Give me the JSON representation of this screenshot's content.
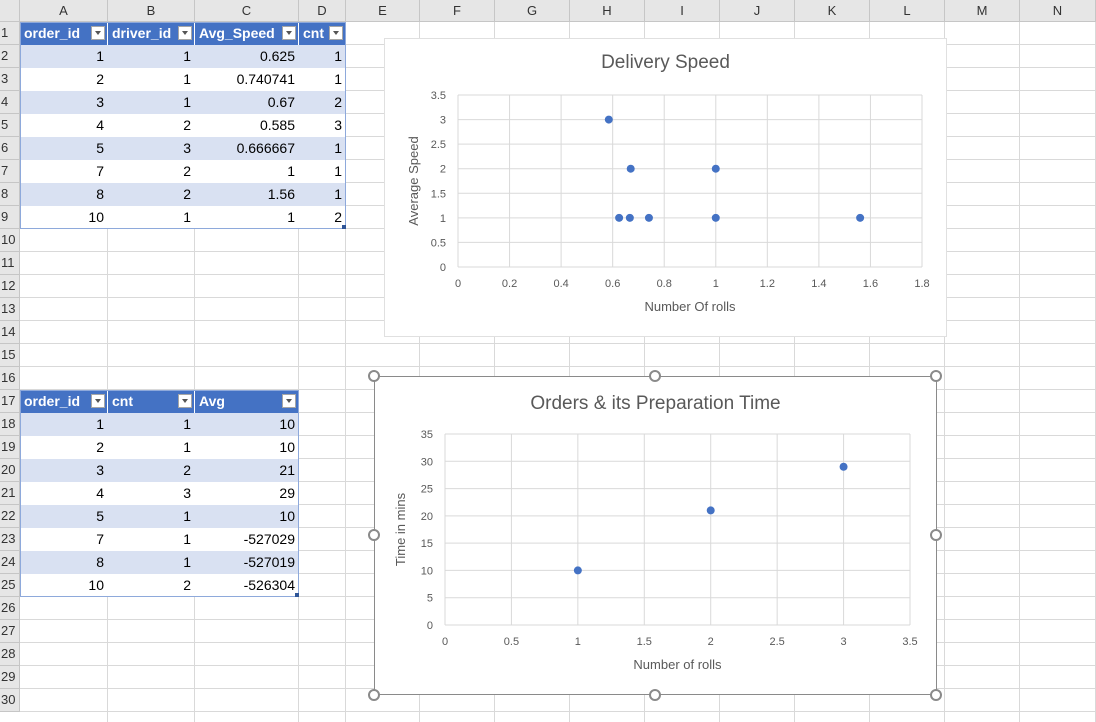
{
  "columns": [
    "A",
    "B",
    "C",
    "D",
    "E",
    "F",
    "G",
    "H",
    "I",
    "J",
    "K",
    "L",
    "M",
    "N"
  ],
  "rows": [
    "1",
    "2",
    "3",
    "4",
    "5",
    "6",
    "7",
    "8",
    "9",
    "10",
    "11",
    "12",
    "13",
    "14",
    "15",
    "16",
    "17",
    "18",
    "19",
    "20",
    "21",
    "22",
    "23",
    "24",
    "25",
    "26",
    "27",
    "28",
    "29",
    "30"
  ],
  "table1": {
    "headers": [
      "order_id",
      "driver_id",
      "Avg_Speed",
      "cnt"
    ],
    "rows": [
      [
        "1",
        "1",
        "0.625",
        "1"
      ],
      [
        "2",
        "1",
        "0.740741",
        "1"
      ],
      [
        "3",
        "1",
        "0.67",
        "2"
      ],
      [
        "4",
        "2",
        "0.585",
        "3"
      ],
      [
        "5",
        "3",
        "0.666667",
        "1"
      ],
      [
        "7",
        "2",
        "1",
        "1"
      ],
      [
        "8",
        "2",
        "1.56",
        "1"
      ],
      [
        "10",
        "1",
        "1",
        "2"
      ]
    ]
  },
  "table2": {
    "headers": [
      "order_id",
      "cnt",
      "Avg"
    ],
    "rows": [
      [
        "1",
        "1",
        "10"
      ],
      [
        "2",
        "1",
        "10"
      ],
      [
        "3",
        "2",
        "21"
      ],
      [
        "4",
        "3",
        "29"
      ],
      [
        "5",
        "1",
        "10"
      ],
      [
        "7",
        "1",
        "-527029"
      ],
      [
        "8",
        "1",
        "-527019"
      ],
      [
        "10",
        "2",
        "-526304"
      ]
    ]
  },
  "chart_data": [
    {
      "type": "scatter",
      "title": "Delivery Speed",
      "xlabel": "Number Of rolls",
      "ylabel": "Average Speed",
      "xlim": [
        0,
        1.8
      ],
      "ylim": [
        0,
        3.5
      ],
      "x_ticks": [
        "0",
        "0.2",
        "0.4",
        "0.6",
        "0.8",
        "1",
        "1.2",
        "1.4",
        "1.6",
        "1.8"
      ],
      "y_ticks": [
        "0",
        "0.5",
        "1",
        "1.5",
        "2",
        "2.5",
        "3",
        "3.5"
      ],
      "x": [
        0.625,
        0.740741,
        0.67,
        0.585,
        0.666667,
        1,
        1.56,
        1
      ],
      "y": [
        1,
        1,
        2,
        3,
        1,
        1,
        1,
        2
      ],
      "grid": true,
      "marker_color": "#4472c4"
    },
    {
      "type": "scatter",
      "title": "Orders & its Preparation Time",
      "xlabel": "Number of rolls",
      "ylabel": "Time in mins",
      "xlim": [
        0,
        3.5
      ],
      "ylim": [
        0,
        35
      ],
      "x_ticks": [
        "0",
        "0.5",
        "1",
        "1.5",
        "2",
        "2.5",
        "3",
        "3.5"
      ],
      "y_ticks": [
        "0",
        "5",
        "10",
        "15",
        "20",
        "25",
        "30",
        "35"
      ],
      "x": [
        1,
        2,
        3
      ],
      "y": [
        10,
        21,
        29
      ],
      "grid": true,
      "marker_color": "#4472c4",
      "selected": true
    }
  ]
}
